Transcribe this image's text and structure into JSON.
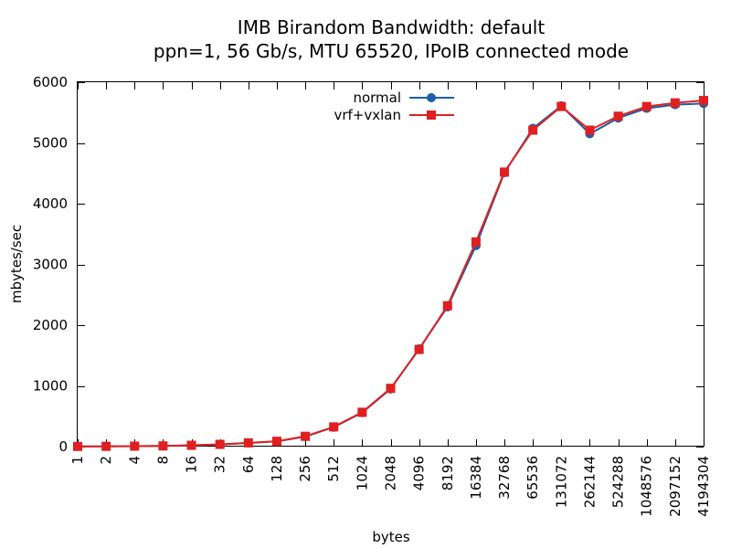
{
  "chart_data": {
    "type": "line",
    "title": "IMB Birandom Bandwidth: default",
    "subtitle": "ppn=1, 56 Gb/s, MTU 65520, IPoIB connected mode",
    "xlabel": "bytes",
    "ylabel": "mbytes/sec",
    "ylim": [
      0,
      6000
    ],
    "yticks": [
      "0",
      "1000",
      "2000",
      "3000",
      "4000",
      "5000",
      "6000"
    ],
    "categories": [
      "1",
      "2",
      "4",
      "8",
      "16",
      "32",
      "64",
      "128",
      "256",
      "512",
      "1024",
      "2048",
      "4096",
      "8192",
      "16384",
      "32768",
      "65536",
      "131072",
      "262144",
      "524288",
      "1048576",
      "2097152",
      "4194304"
    ],
    "legend_position": "top-center",
    "grid": false,
    "series": [
      {
        "name": "normal",
        "color": "#1a5fa8",
        "marker": "circle",
        "values": [
          3,
          5,
          8,
          12,
          20,
          35,
          60,
          85,
          165,
          320,
          560,
          950,
          1610,
          2300,
          3310,
          4510,
          5240,
          5610,
          5150,
          5410,
          5570,
          5630,
          5650
        ]
      },
      {
        "name": "vrf+vxlan",
        "color": "#e02020",
        "marker": "square",
        "values": [
          3,
          5,
          8,
          12,
          22,
          37,
          62,
          88,
          170,
          325,
          565,
          960,
          1600,
          2320,
          3370,
          4520,
          5210,
          5600,
          5210,
          5440,
          5600,
          5660,
          5700
        ]
      }
    ]
  }
}
